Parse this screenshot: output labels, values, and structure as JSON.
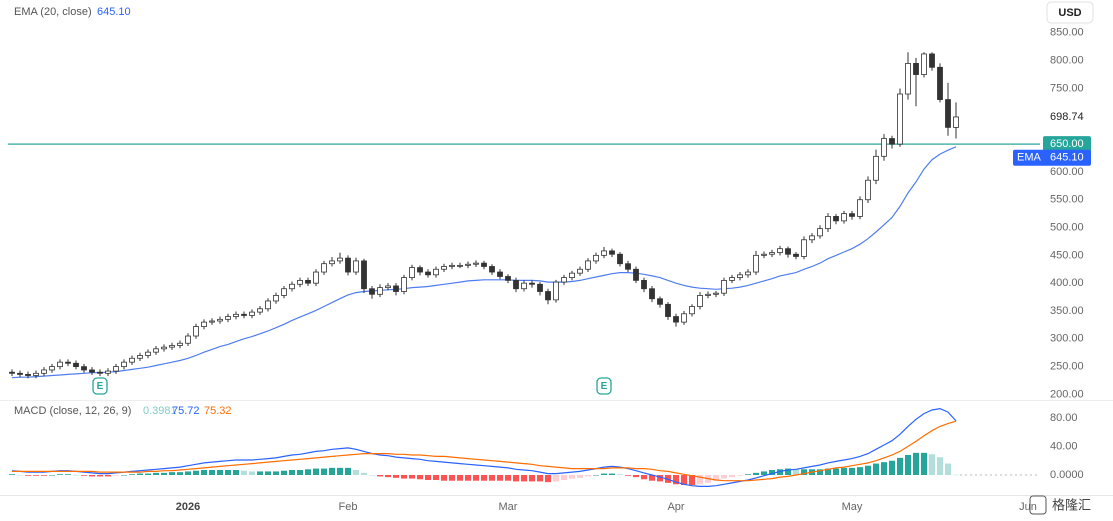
{
  "chart_data": {
    "type": "candlestick",
    "currency": "USD",
    "up_color": "#ffffff",
    "down_color": "#333333",
    "grid": false,
    "xlim": [
      -0.5,
      128.5
    ],
    "xticks": [
      {
        "value": 22,
        "label": "2026"
      },
      {
        "value": 42,
        "label": "Feb"
      },
      {
        "value": 62,
        "label": "Mar"
      },
      {
        "value": 83,
        "label": "Apr"
      },
      {
        "value": 105,
        "label": "May"
      },
      {
        "value": 127,
        "label": "Jun"
      }
    ],
    "ylim": [
      190,
      900
    ],
    "yticks": [
      {
        "value": 200,
        "label": "200.00"
      },
      {
        "value": 250,
        "label": "250.00"
      },
      {
        "value": 300,
        "label": "300.00"
      },
      {
        "value": 350,
        "label": "350.00"
      },
      {
        "value": 400,
        "label": "400.00"
      },
      {
        "value": 450,
        "label": "450.00"
      },
      {
        "value": 500,
        "label": "500.00"
      },
      {
        "value": 550,
        "label": "550.00"
      },
      {
        "value": 600,
        "label": "600.00"
      },
      {
        "value": 650,
        "label": "650.00"
      },
      {
        "value": 700,
        "label": "700.00"
      },
      {
        "value": 750,
        "label": "750.00"
      },
      {
        "value": 800,
        "label": "800.00"
      },
      {
        "value": 850,
        "label": "850.00"
      }
    ],
    "open": [
      240,
      238,
      236,
      234,
      238,
      244,
      250,
      258,
      256,
      250,
      244,
      240,
      238,
      242,
      250,
      258,
      265,
      270,
      276,
      282,
      285,
      288,
      292,
      305,
      322,
      330,
      332,
      335,
      340,
      344,
      342,
      348,
      354,
      368,
      378,
      390,
      398,
      405,
      400,
      420,
      435,
      440,
      445,
      420,
      440,
      390,
      380,
      392,
      395,
      385,
      410,
      428,
      420,
      415,
      425,
      430,
      432,
      432,
      434,
      436,
      430,
      420,
      412,
      405,
      390,
      400,
      398,
      385,
      370,
      402,
      410,
      418,
      425,
      440,
      450,
      458,
      452,
      435,
      425,
      405,
      390,
      372,
      362,
      340,
      330,
      345,
      358,
      378,
      380,
      382,
      405,
      410,
      415,
      420,
      450,
      452,
      455,
      462,
      452,
      448,
      478,
      485,
      498,
      520,
      512,
      525,
      520,
      550,
      585,
      628,
      660,
      650,
      740,
      795,
      775,
      812,
      788,
      730,
      680
    ],
    "high": [
      245,
      243,
      241,
      243,
      249,
      255,
      263,
      263,
      261,
      255,
      249,
      245,
      247,
      255,
      263,
      270,
      275,
      281,
      287,
      290,
      293,
      297,
      310,
      327,
      335,
      337,
      340,
      345,
      349,
      349,
      353,
      359,
      373,
      383,
      395,
      403,
      410,
      410,
      425,
      440,
      447,
      455,
      450,
      446,
      444,
      395,
      398,
      400,
      400,
      415,
      433,
      432,
      425,
      430,
      435,
      437,
      437,
      439,
      441,
      440,
      434,
      425,
      416,
      410,
      405,
      405,
      402,
      390,
      406,
      415,
      422,
      430,
      445,
      455,
      465,
      462,
      456,
      440,
      430,
      410,
      395,
      376,
      366,
      345,
      350,
      362,
      384,
      385,
      386,
      410,
      415,
      420,
      425,
      458,
      457,
      460,
      467,
      466,
      456,
      484,
      490,
      504,
      526,
      524,
      530,
      530,
      556,
      592,
      640,
      668,
      665,
      750,
      815,
      805,
      815,
      815,
      795,
      760,
      725
    ],
    "low": [
      233,
      231,
      229,
      229,
      233,
      239,
      245,
      251,
      245,
      239,
      235,
      233,
      233,
      237,
      245,
      253,
      260,
      265,
      271,
      277,
      280,
      283,
      287,
      300,
      317,
      325,
      327,
      330,
      335,
      337,
      337,
      343,
      349,
      363,
      373,
      385,
      393,
      395,
      395,
      415,
      430,
      435,
      414,
      415,
      382,
      372,
      375,
      387,
      378,
      380,
      405,
      414,
      410,
      410,
      420,
      425,
      427,
      427,
      429,
      425,
      415,
      407,
      400,
      384,
      385,
      392,
      378,
      362,
      365,
      397,
      405,
      413,
      420,
      435,
      445,
      447,
      430,
      420,
      400,
      384,
      366,
      356,
      334,
      322,
      325,
      340,
      353,
      373,
      375,
      377,
      400,
      405,
      410,
      415,
      445,
      447,
      450,
      446,
      443,
      443,
      472,
      480,
      492,
      506,
      507,
      514,
      515,
      544,
      578,
      620,
      642,
      645,
      730,
      718,
      770,
      782,
      725,
      665,
      660
    ],
    "close": [
      238,
      236,
      234,
      238,
      244,
      250,
      258,
      256,
      250,
      244,
      240,
      238,
      242,
      250,
      258,
      265,
      270,
      276,
      282,
      285,
      288,
      292,
      305,
      322,
      330,
      332,
      335,
      340,
      344,
      342,
      348,
      354,
      368,
      378,
      390,
      398,
      405,
      400,
      420,
      435,
      440,
      445,
      420,
      440,
      390,
      380,
      392,
      395,
      385,
      410,
      428,
      420,
      415,
      425,
      430,
      432,
      432,
      434,
      436,
      430,
      420,
      412,
      405,
      390,
      400,
      398,
      385,
      370,
      402,
      410,
      418,
      425,
      440,
      450,
      458,
      452,
      435,
      425,
      405,
      390,
      372,
      362,
      340,
      330,
      345,
      358,
      378,
      380,
      382,
      405,
      410,
      415,
      420,
      450,
      452,
      455,
      462,
      452,
      448,
      478,
      485,
      498,
      520,
      512,
      525,
      520,
      550,
      585,
      628,
      660,
      650,
      740,
      795,
      775,
      812,
      788,
      730,
      680,
      698.74
    ],
    "ema": {
      "name": "EMA (20, close)",
      "badge_label": "EMA",
      "color": "#4f7df0",
      "last_label": "645.10",
      "values": [
        230,
        231,
        231,
        232,
        233,
        234,
        235,
        236,
        237,
        238,
        239,
        239,
        240,
        241,
        243,
        245,
        247,
        249,
        252,
        255,
        258,
        261,
        265,
        270,
        276,
        281,
        286,
        290,
        295,
        300,
        304,
        309,
        314,
        320,
        326,
        333,
        339,
        345,
        351,
        358,
        365,
        372,
        379,
        383,
        385,
        386,
        387,
        388,
        389,
        390,
        392,
        393,
        394,
        396,
        398,
        400,
        402,
        404,
        405,
        406,
        406,
        406,
        406,
        405,
        405,
        405,
        404,
        402,
        402,
        402,
        403,
        405,
        408,
        411,
        414,
        417,
        419,
        419,
        418,
        416,
        413,
        410,
        405,
        400,
        396,
        393,
        391,
        390,
        389,
        390,
        391,
        393,
        396,
        400,
        404,
        408,
        413,
        416,
        419,
        425,
        430,
        436,
        444,
        450,
        456,
        462,
        470,
        480,
        492,
        505,
        518,
        538,
        562,
        582,
        605,
        622,
        632,
        639,
        645.1
      ]
    },
    "price_line": {
      "value": 650,
      "label": "650.00",
      "color": "#4db6ac"
    },
    "events": [
      {
        "index": 11,
        "label": "E"
      },
      {
        "index": 74,
        "label": "E"
      }
    ],
    "macd": {
      "name": "MACD (close, 12, 26, 9)",
      "ylim": [
        -28,
        98
      ],
      "yticks": [
        {
          "value": 0,
          "label": "0.0000"
        },
        {
          "value": 40,
          "label": "40.00"
        },
        {
          "value": 80,
          "label": "80.00"
        }
      ],
      "macd_color": "#2962ff",
      "signal_color": "#ff6d00",
      "hist_colors": {
        "pos_grow": "#26a69a",
        "pos_fall": "#b2dfdb",
        "neg_grow": "#ff5252",
        "neg_fall": "#ffcdd2"
      },
      "macd": [
        6,
        5,
        4,
        4,
        4,
        5,
        6,
        6,
        5,
        4,
        3,
        2,
        2,
        3,
        4,
        5,
        6,
        7,
        8,
        9,
        10,
        11,
        13,
        15,
        17,
        18,
        19,
        20,
        21,
        21,
        21,
        22,
        23,
        24,
        26,
        28,
        29,
        31,
        33,
        34,
        36,
        37,
        38,
        36,
        33,
        30,
        28,
        27,
        25,
        24,
        23,
        22,
        20,
        19,
        18,
        17,
        16,
        15,
        14,
        13,
        12,
        11,
        10,
        8,
        7,
        6,
        4,
        2,
        2,
        3,
        4,
        5,
        7,
        9,
        11,
        12,
        11,
        9,
        6,
        3,
        0,
        -3,
        -6,
        -10,
        -13,
        -15,
        -16,
        -16,
        -15,
        -13,
        -11,
        -9,
        -7,
        -4,
        -1,
        2,
        5,
        7,
        8,
        10,
        12,
        14,
        17,
        19,
        21,
        23,
        26,
        30,
        36,
        42,
        48,
        57,
        68,
        78,
        86,
        91,
        93,
        88,
        75.72
      ],
      "signal": [
        5,
        5,
        5,
        5,
        5,
        5,
        5,
        5,
        5,
        5,
        5,
        4,
        4,
        4,
        4,
        4,
        4,
        5,
        5,
        6,
        6,
        7,
        8,
        9,
        10,
        11,
        12,
        13,
        14,
        15,
        16,
        17,
        18,
        19,
        20,
        21,
        22,
        23,
        24,
        25,
        26,
        27,
        28,
        29,
        30,
        30,
        30,
        30,
        29,
        29,
        28,
        28,
        27,
        26,
        26,
        25,
        24,
        23,
        22,
        21,
        20,
        19,
        18,
        17,
        16,
        15,
        13,
        12,
        11,
        10,
        9,
        9,
        9,
        9,
        9,
        10,
        10,
        10,
        9,
        9,
        8,
        6,
        5,
        3,
        1,
        -1,
        -3,
        -5,
        -7,
        -8,
        -8,
        -8,
        -8,
        -7,
        -6,
        -5,
        -3,
        -2,
        0,
        2,
        4,
        6,
        8,
        10,
        11,
        13,
        15,
        17,
        20,
        24,
        28,
        33,
        40,
        47,
        55,
        62,
        68,
        72,
        75.32
      ],
      "histogram": [
        1,
        0,
        -1,
        -1,
        -1,
        0,
        1,
        1,
        0,
        -1,
        -2,
        -2,
        -2,
        -1,
        0,
        1,
        2,
        2,
        3,
        3,
        4,
        4,
        5,
        6,
        7,
        7,
        7,
        7,
        7,
        6,
        5,
        5,
        5,
        5,
        6,
        7,
        7,
        8,
        9,
        9,
        10,
        10,
        10,
        7,
        3,
        0,
        -2,
        -3,
        -4,
        -5,
        -5,
        -6,
        -7,
        -7,
        -8,
        -8,
        -8,
        -8,
        -8,
        -8,
        -8,
        -8,
        -8,
        -9,
        -9,
        -9,
        -9,
        -10,
        -9,
        -7,
        -5,
        -4,
        -2,
        0,
        2,
        2,
        1,
        -1,
        -3,
        -6,
        -8,
        -9,
        -11,
        -13,
        -14,
        -14,
        -13,
        -11,
        -8,
        -5,
        -3,
        -1,
        1,
        3,
        5,
        7,
        8,
        9,
        8,
        8,
        8,
        8,
        9,
        9,
        10,
        10,
        11,
        13,
        16,
        18,
        20,
        24,
        28,
        31,
        31,
        29,
        25,
        16,
        0.3981
      ]
    },
    "watermark": "格隆汇"
  }
}
